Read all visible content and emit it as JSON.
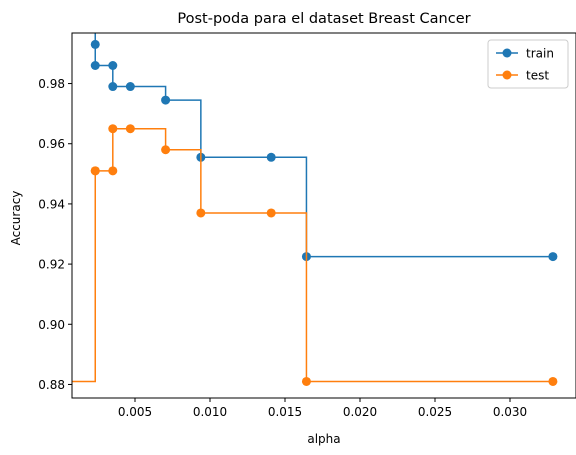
{
  "chart_data": {
    "type": "line",
    "title": "Post-poda para el dataset Breast Cancer",
    "xlabel": "alpha",
    "ylabel": "Accuracy",
    "xlim": [
      0.0008,
      0.0344
    ],
    "ylim": [
      0.8755,
      0.9968
    ],
    "xticks": [
      0.005,
      0.01,
      0.015,
      0.02,
      0.025,
      0.03
    ],
    "xtick_labels": [
      "0.005",
      "0.010",
      "0.015",
      "0.020",
      "0.025",
      "0.030"
    ],
    "yticks": [
      0.88,
      0.9,
      0.92,
      0.94,
      0.96,
      0.98
    ],
    "ytick_labels": [
      "0.88",
      "0.90",
      "0.92",
      "0.94",
      "0.96",
      "0.98"
    ],
    "grid": false,
    "legend_position": "top-right",
    "drawstyle": "steps-post",
    "x": [
      0.0,
      0.00235,
      0.00235,
      0.00352,
      0.00352,
      0.00469,
      0.00704,
      0.00939,
      0.01408,
      0.01643,
      0.03286
    ],
    "series": [
      {
        "name": "train",
        "color": "#1f77b4",
        "values": [
          1.0,
          0.993,
          0.986,
          0.986,
          0.979,
          0.979,
          0.9745,
          0.9555,
          0.9555,
          0.9225,
          0.9225
        ]
      },
      {
        "name": "test",
        "color": "#ff7f0e",
        "values": [
          0.881,
          0.951,
          0.951,
          0.951,
          0.965,
          0.965,
          0.958,
          0.937,
          0.937,
          0.881,
          0.881
        ]
      }
    ]
  }
}
